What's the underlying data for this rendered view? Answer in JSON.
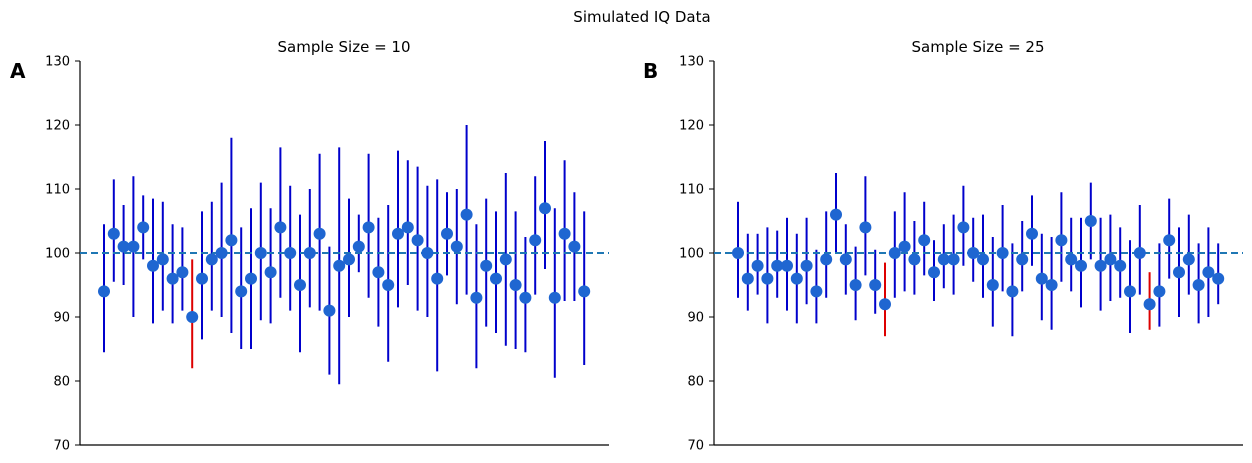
{
  "figure_title": "Simulated IQ Data",
  "chart_data": [
    {
      "type": "scatter",
      "panel_label": "A",
      "title": "Sample Size = 10",
      "ylim": [
        70,
        130
      ],
      "yticks": [
        70,
        80,
        90,
        100,
        110,
        120,
        130
      ],
      "reference_line": 100,
      "reference_style": "dashed",
      "grid": false,
      "errorbar_color": "#0000cc",
      "miss_color": "#dd0000",
      "point_color": "#1f66d1",
      "ref_color": "#1f77b4",
      "points": [
        {
          "mean": 94,
          "lo": 84.5,
          "hi": 104.5
        },
        {
          "mean": 103,
          "lo": 95.5,
          "hi": 111.5
        },
        {
          "mean": 101,
          "lo": 95,
          "hi": 107.5
        },
        {
          "mean": 101,
          "lo": 90,
          "hi": 112
        },
        {
          "mean": 104,
          "lo": 99,
          "hi": 109
        },
        {
          "mean": 98,
          "lo": 89,
          "hi": 108.5
        },
        {
          "mean": 99,
          "lo": 91,
          "hi": 108
        },
        {
          "mean": 96,
          "lo": 89,
          "hi": 104.5
        },
        {
          "mean": 97,
          "lo": 91,
          "hi": 104
        },
        {
          "mean": 90,
          "lo": 82,
          "hi": 99,
          "miss": true
        },
        {
          "mean": 96,
          "lo": 86.5,
          "hi": 106.5
        },
        {
          "mean": 99,
          "lo": 91,
          "hi": 108
        },
        {
          "mean": 100,
          "lo": 90,
          "hi": 111
        },
        {
          "mean": 102,
          "lo": 87.5,
          "hi": 118
        },
        {
          "mean": 94,
          "lo": 85,
          "hi": 104
        },
        {
          "mean": 96,
          "lo": 85,
          "hi": 107
        },
        {
          "mean": 100,
          "lo": 89.5,
          "hi": 111
        },
        {
          "mean": 97,
          "lo": 89,
          "hi": 107
        },
        {
          "mean": 104,
          "lo": 93,
          "hi": 116.5
        },
        {
          "mean": 100,
          "lo": 91,
          "hi": 110.5
        },
        {
          "mean": 95,
          "lo": 84.5,
          "hi": 106
        },
        {
          "mean": 100,
          "lo": 91.5,
          "hi": 110
        },
        {
          "mean": 103,
          "lo": 91,
          "hi": 115.5
        },
        {
          "mean": 91,
          "lo": 81,
          "hi": 101
        },
        {
          "mean": 98,
          "lo": 79.5,
          "hi": 116.5
        },
        {
          "mean": 99,
          "lo": 90,
          "hi": 108.5
        },
        {
          "mean": 101,
          "lo": 97,
          "hi": 106
        },
        {
          "mean": 104,
          "lo": 93,
          "hi": 115.5
        },
        {
          "mean": 97,
          "lo": 88.5,
          "hi": 105.5
        },
        {
          "mean": 95,
          "lo": 83,
          "hi": 107.5
        },
        {
          "mean": 103,
          "lo": 91.5,
          "hi": 116
        },
        {
          "mean": 104,
          "lo": 95,
          "hi": 114.5
        },
        {
          "mean": 102,
          "lo": 91,
          "hi": 113.5
        },
        {
          "mean": 100,
          "lo": 90,
          "hi": 110.5
        },
        {
          "mean": 96,
          "lo": 81.5,
          "hi": 111.5
        },
        {
          "mean": 103,
          "lo": 96.5,
          "hi": 109.5
        },
        {
          "mean": 101,
          "lo": 92,
          "hi": 110
        },
        {
          "mean": 106,
          "lo": 93.5,
          "hi": 120
        },
        {
          "mean": 93,
          "lo": 82,
          "hi": 104.5
        },
        {
          "mean": 98,
          "lo": 88.5,
          "hi": 108.5
        },
        {
          "mean": 96,
          "lo": 87.5,
          "hi": 106.5
        },
        {
          "mean": 99,
          "lo": 85.5,
          "hi": 112.5
        },
        {
          "mean": 95,
          "lo": 85,
          "hi": 106.5
        },
        {
          "mean": 93,
          "lo": 84.5,
          "hi": 102.5
        },
        {
          "mean": 102,
          "lo": 93.5,
          "hi": 112
        },
        {
          "mean": 107,
          "lo": 97.5,
          "hi": 117.5
        },
        {
          "mean": 93,
          "lo": 80.5,
          "hi": 107
        },
        {
          "mean": 103,
          "lo": 92.5,
          "hi": 114.5
        },
        {
          "mean": 101,
          "lo": 92.5,
          "hi": 109.5
        },
        {
          "mean": 94,
          "lo": 82.5,
          "hi": 106.5
        }
      ]
    },
    {
      "type": "scatter",
      "panel_label": "B",
      "title": "Sample Size = 25",
      "ylim": [
        70,
        130
      ],
      "yticks": [
        70,
        80,
        90,
        100,
        110,
        120,
        130
      ],
      "reference_line": 100,
      "reference_style": "dashed",
      "grid": false,
      "errorbar_color": "#0000cc",
      "miss_color": "#dd0000",
      "point_color": "#1f66d1",
      "ref_color": "#1f77b4",
      "points": [
        {
          "mean": 100,
          "lo": 93,
          "hi": 108
        },
        {
          "mean": 96,
          "lo": 91,
          "hi": 103
        },
        {
          "mean": 98,
          "lo": 93.5,
          "hi": 103
        },
        {
          "mean": 96,
          "lo": 89,
          "hi": 104
        },
        {
          "mean": 98,
          "lo": 93,
          "hi": 103.5
        },
        {
          "mean": 98,
          "lo": 91,
          "hi": 105.5
        },
        {
          "mean": 96,
          "lo": 89,
          "hi": 103
        },
        {
          "mean": 98,
          "lo": 92,
          "hi": 105.5
        },
        {
          "mean": 94,
          "lo": 89,
          "hi": 100.5
        },
        {
          "mean": 99,
          "lo": 93,
          "hi": 106.5
        },
        {
          "mean": 106,
          "lo": 100,
          "hi": 112.5
        },
        {
          "mean": 99,
          "lo": 93.5,
          "hi": 104.5
        },
        {
          "mean": 95,
          "lo": 89.5,
          "hi": 101
        },
        {
          "mean": 104,
          "lo": 96.5,
          "hi": 112
        },
        {
          "mean": 95,
          "lo": 90.5,
          "hi": 100.5
        },
        {
          "mean": 92,
          "lo": 87,
          "hi": 98.5,
          "miss": true
        },
        {
          "mean": 100,
          "lo": 93,
          "hi": 106.5
        },
        {
          "mean": 101,
          "lo": 94,
          "hi": 109.5
        },
        {
          "mean": 99,
          "lo": 93.5,
          "hi": 105
        },
        {
          "mean": 102,
          "lo": 96.5,
          "hi": 108
        },
        {
          "mean": 97,
          "lo": 92.5,
          "hi": 102
        },
        {
          "mean": 99,
          "lo": 94.5,
          "hi": 104.5
        },
        {
          "mean": 99,
          "lo": 93.5,
          "hi": 106
        },
        {
          "mean": 104,
          "lo": 98,
          "hi": 110.5
        },
        {
          "mean": 100,
          "lo": 95.5,
          "hi": 105.5
        },
        {
          "mean": 99,
          "lo": 93,
          "hi": 106
        },
        {
          "mean": 95,
          "lo": 88.5,
          "hi": 102.5
        },
        {
          "mean": 100,
          "lo": 94,
          "hi": 107.5
        },
        {
          "mean": 94,
          "lo": 87,
          "hi": 101.5
        },
        {
          "mean": 99,
          "lo": 94,
          "hi": 105
        },
        {
          "mean": 103,
          "lo": 98,
          "hi": 109
        },
        {
          "mean": 96,
          "lo": 89.5,
          "hi": 103
        },
        {
          "mean": 95,
          "lo": 88,
          "hi": 102.5
        },
        {
          "mean": 102,
          "lo": 95.5,
          "hi": 109.5
        },
        {
          "mean": 99,
          "lo": 94,
          "hi": 105.5
        },
        {
          "mean": 98,
          "lo": 91.5,
          "hi": 105.5
        },
        {
          "mean": 105,
          "lo": 99,
          "hi": 111
        },
        {
          "mean": 98,
          "lo": 91,
          "hi": 105.5
        },
        {
          "mean": 99,
          "lo": 92.5,
          "hi": 106
        },
        {
          "mean": 98,
          "lo": 93,
          "hi": 104
        },
        {
          "mean": 94,
          "lo": 87.5,
          "hi": 102
        },
        {
          "mean": 100,
          "lo": 93.5,
          "hi": 107.5
        },
        {
          "mean": 92,
          "lo": 88,
          "hi": 97,
          "miss": true
        },
        {
          "mean": 94,
          "lo": 88.5,
          "hi": 101.5
        },
        {
          "mean": 102,
          "lo": 96,
          "hi": 108.5
        },
        {
          "mean": 97,
          "lo": 90,
          "hi": 104
        },
        {
          "mean": 99,
          "lo": 93.5,
          "hi": 106
        },
        {
          "mean": 95,
          "lo": 89,
          "hi": 101.5
        },
        {
          "mean": 97,
          "lo": 90,
          "hi": 104
        },
        {
          "mean": 96,
          "lo": 92,
          "hi": 101.5
        }
      ]
    }
  ]
}
